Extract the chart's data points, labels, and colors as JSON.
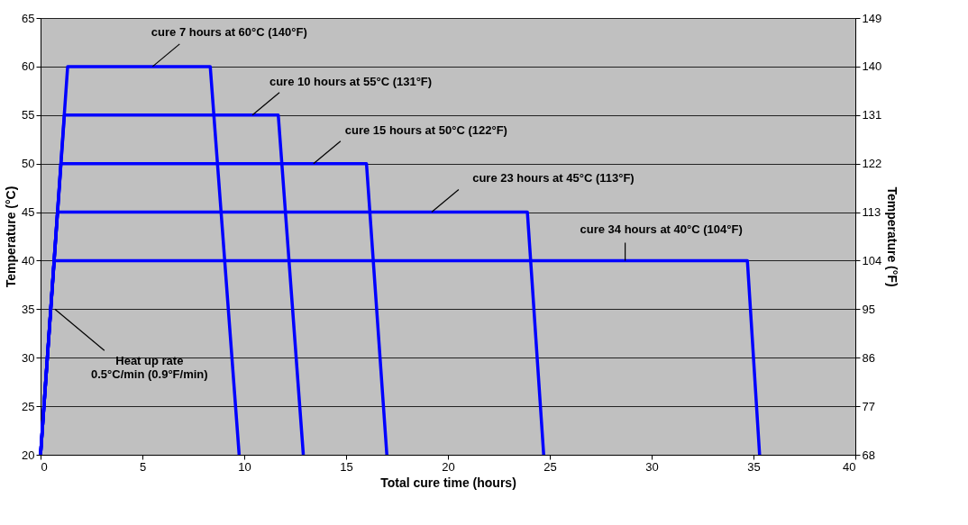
{
  "chart_data": {
    "type": "line",
    "xlabel": "Total cure time (hours)",
    "ylabel": "Temperature (°C)",
    "y2label": "Temperature (°F)",
    "xlim": [
      0,
      40
    ],
    "xticks": [
      0,
      5,
      10,
      15,
      20,
      25,
      30,
      35,
      40
    ],
    "ylim": [
      20,
      65
    ],
    "yticks": [
      20,
      25,
      30,
      35,
      40,
      45,
      50,
      55,
      60,
      65
    ],
    "y2lim": [
      68,
      149
    ],
    "y2ticks": [
      68,
      77,
      86,
      95,
      104,
      113,
      122,
      131,
      140,
      149
    ],
    "grid": "y",
    "marker": "none",
    "line_style": "solid",
    "series": [
      {
        "color": "#0000ff",
        "x": [
          0,
          1.33,
          8.33,
          9.75
        ],
        "values": [
          20,
          60,
          60,
          20
        ]
      },
      {
        "color": "#0000ff",
        "x": [
          0,
          1.17,
          11.67,
          12.9
        ],
        "values": [
          20,
          55,
          55,
          20
        ]
      },
      {
        "color": "#0000ff",
        "x": [
          0,
          1.0,
          16.0,
          17.0
        ],
        "values": [
          20,
          50,
          50,
          20
        ]
      },
      {
        "color": "#0000ff",
        "x": [
          0,
          0.83,
          23.9,
          24.7
        ],
        "values": [
          20,
          45,
          45,
          20
        ]
      },
      {
        "color": "#0000ff",
        "x": [
          0,
          0.67,
          34.7,
          35.3
        ],
        "values": [
          20,
          40,
          40,
          20
        ]
      }
    ],
    "annotations": [
      {
        "text": "cure 7 hours at 60°C (140°F)",
        "x": 5.5,
        "y": 60
      },
      {
        "text": "cure 10 hours at 55°C (131°F)",
        "x": 10.4,
        "y": 55
      },
      {
        "text": "cure 15 hours at 50°C (122°F)",
        "x": 13.4,
        "y": 50
      },
      {
        "text": "cure 23 hours at 45°C (113°F)",
        "x": 19.2,
        "y": 45
      },
      {
        "text": "cure 34 hours at 40°C (104°F)",
        "x": 28.7,
        "y": 40
      },
      {
        "text": "Heat up rate\n0.5°C/min (0.9°F/min)",
        "x": 0.7,
        "y": 35
      }
    ]
  }
}
